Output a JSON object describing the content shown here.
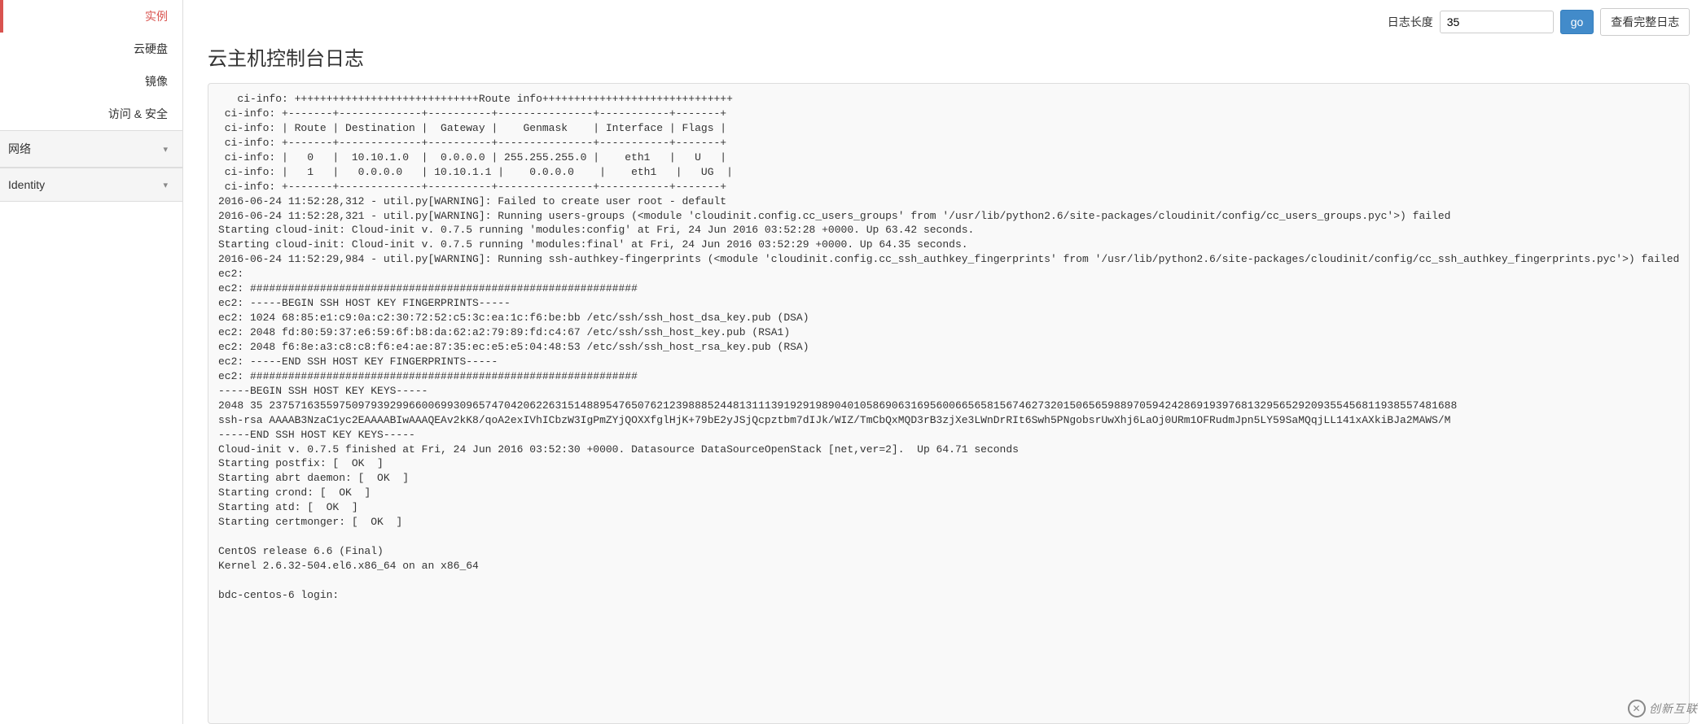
{
  "sidebar": {
    "items": [
      {
        "label": "实例",
        "active": true
      },
      {
        "label": "云硬盘",
        "active": false
      },
      {
        "label": "镜像",
        "active": false
      },
      {
        "label": "访问 & 安全",
        "active": false
      }
    ],
    "sections": [
      {
        "label": "网络"
      },
      {
        "label": "Identity"
      }
    ]
  },
  "toolbar": {
    "length_label": "日志长度",
    "length_value": "35",
    "go_label": "go",
    "full_log_label": "查看完整日志"
  },
  "page": {
    "title": "云主机控制台日志"
  },
  "log_lines": [
    "   ci-info: +++++++++++++++++++++++++++++Route info++++++++++++++++++++++++++++++",
    " ci-info: +-------+-------------+----------+---------------+-----------+-------+",
    " ci-info: | Route | Destination |  Gateway |    Genmask    | Interface | Flags |",
    " ci-info: +-------+-------------+----------+---------------+-----------+-------+",
    " ci-info: |   0   |  10.10.1.0  |  0.0.0.0 | 255.255.255.0 |    eth1   |   U   |",
    " ci-info: |   1   |   0.0.0.0   | 10.10.1.1 |    0.0.0.0    |    eth1   |   UG  |",
    " ci-info: +-------+-------------+----------+---------------+-----------+-------+",
    "2016-06-24 11:52:28,312 - util.py[WARNING]: Failed to create user root - default",
    "2016-06-24 11:52:28,321 - util.py[WARNING]: Running users-groups (<module 'cloudinit.config.cc_users_groups' from '/usr/lib/python2.6/site-packages/cloudinit/config/cc_users_groups.pyc'>) failed",
    "Starting cloud-init: Cloud-init v. 0.7.5 running 'modules:config' at Fri, 24 Jun 2016 03:52:28 +0000. Up 63.42 seconds.",
    "Starting cloud-init: Cloud-init v. 0.7.5 running 'modules:final' at Fri, 24 Jun 2016 03:52:29 +0000. Up 64.35 seconds.",
    "2016-06-24 11:52:29,984 - util.py[WARNING]: Running ssh-authkey-fingerprints (<module 'cloudinit.config.cc_ssh_authkey_fingerprints' from '/usr/lib/python2.6/site-packages/cloudinit/config/cc_ssh_authkey_fingerprints.pyc'>) failed",
    "ec2: ",
    "ec2: #############################################################",
    "ec2: -----BEGIN SSH HOST KEY FINGERPRINTS-----",
    "ec2: 1024 68:85:e1:c9:0a:c2:30:72:52:c5:3c:ea:1c:f6:be:bb /etc/ssh/ssh_host_dsa_key.pub (DSA)",
    "ec2: 2048 fd:80:59:37:e6:59:6f:b8:da:62:a2:79:89:fd:c4:67 /etc/ssh/ssh_host_key.pub (RSA1)",
    "ec2: 2048 f6:8e:a3:c8:c8:f6:e4:ae:87:35:ec:e5:e5:04:48:53 /etc/ssh/ssh_host_rsa_key.pub (RSA)",
    "ec2: -----END SSH HOST KEY FINGERPRINTS-----",
    "ec2: #############################################################",
    "-----BEGIN SSH HOST KEY KEYS-----",
    "2048 35 2375716355975097939299660069930965747042062263151488954765076212398885244813111391929198904010586906316956006656581567462732015065659889705942428691939768132956529209355456811938557481688",
    "ssh-rsa AAAAB3NzaC1yc2EAAAABIwAAAQEAv2kK8/qoA2exIVhICbzW3IgPmZYjQOXXfglHjK+79bE2yJSjQcpztbm7dIJk/WIZ/TmCbQxMQD3rB3zjXe3LWnDrRIt6Swh5PNgobsrUwXhj6LaOj0URm1OFRudmJpn5LY59SaMQqjLL141xAXkiBJa2MAWS/M",
    "-----END SSH HOST KEY KEYS-----",
    "Cloud-init v. 0.7.5 finished at Fri, 24 Jun 2016 03:52:30 +0000. Datasource DataSourceOpenStack [net,ver=2].  Up 64.71 seconds",
    "Starting postfix: [  OK  ]",
    "Starting abrt daemon: [  OK  ]",
    "Starting crond: [  OK  ]",
    "Starting atd: [  OK  ]",
    "Starting certmonger: [  OK  ]",
    "",
    "CentOS release 6.6 (Final)",
    "Kernel 2.6.32-504.el6.x86_64 on an x86_64",
    "",
    "bdc-centos-6 login:"
  ],
  "watermark": {
    "text": "创新互联"
  },
  "colors": {
    "active_red": "#d9534f",
    "btn_primary_bg": "#428bca",
    "panel_bg": "#f9f9f9",
    "border": "#dddddd"
  }
}
